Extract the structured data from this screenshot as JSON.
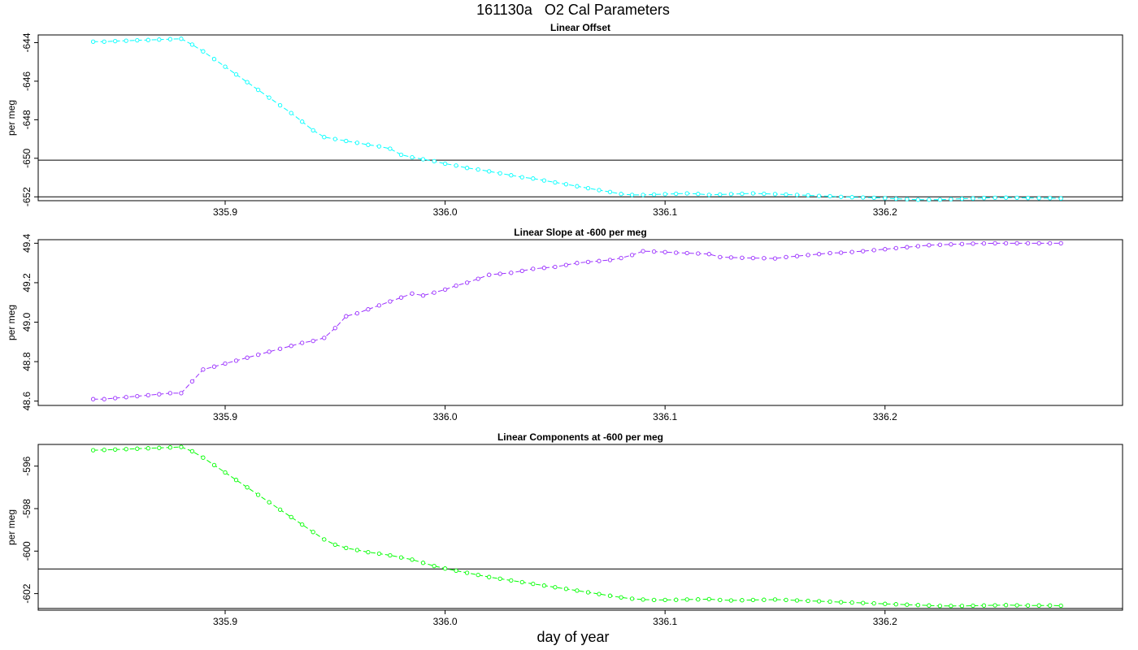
{
  "page": {
    "title": "161130a   O2 Cal Parameters",
    "xlabel": "day of year"
  },
  "chart_data": [
    {
      "type": "line",
      "title": "Linear Offset",
      "xlabel": "day of year",
      "ylabel": "per meg",
      "xlim": [
        335.815,
        336.308
      ],
      "ylim": [
        -652.2,
        -643.6
      ],
      "x_ticks": [
        "335.9",
        "336.0",
        "336.1",
        "336.2"
      ],
      "y_ticks": [
        "-644",
        "-646",
        "-648",
        "-650",
        "-652"
      ],
      "color": "#00ffff",
      "hlines": [
        -650.1,
        -652.0
      ],
      "x": [
        335.84,
        335.845,
        335.85,
        335.855,
        335.86,
        335.865,
        335.87,
        335.875,
        335.88,
        335.885,
        335.89,
        335.895,
        335.9,
        335.905,
        335.91,
        335.915,
        335.92,
        335.925,
        335.93,
        335.935,
        335.94,
        335.945,
        335.95,
        335.955,
        335.96,
        335.965,
        335.97,
        335.975,
        335.98,
        335.985,
        335.99,
        335.995,
        336.0,
        336.005,
        336.01,
        336.015,
        336.02,
        336.025,
        336.03,
        336.035,
        336.04,
        336.045,
        336.05,
        336.055,
        336.06,
        336.065,
        336.07,
        336.075,
        336.08,
        336.085,
        336.09,
        336.095,
        336.1,
        336.105,
        336.11,
        336.115,
        336.12,
        336.125,
        336.13,
        336.135,
        336.14,
        336.145,
        336.15,
        336.155,
        336.16,
        336.165,
        336.17,
        336.175,
        336.18,
        336.185,
        336.19,
        336.195,
        336.2,
        336.205,
        336.21,
        336.215,
        336.22,
        336.225,
        336.23,
        336.235,
        336.24,
        336.245,
        336.25,
        336.255,
        336.26,
        336.265,
        336.27,
        336.275,
        336.28
      ],
      "values": [
        -643.95,
        -643.95,
        -643.92,
        -643.9,
        -643.88,
        -643.86,
        -643.84,
        -643.82,
        -643.8,
        -644.1,
        -644.45,
        -644.85,
        -645.25,
        -645.65,
        -646.05,
        -646.45,
        -646.85,
        -647.25,
        -647.65,
        -648.1,
        -648.55,
        -648.9,
        -649.0,
        -649.1,
        -649.2,
        -649.3,
        -649.38,
        -649.5,
        -649.82,
        -649.95,
        -650.05,
        -650.15,
        -650.28,
        -650.38,
        -650.5,
        -650.58,
        -650.68,
        -650.78,
        -650.88,
        -650.98,
        -651.05,
        -651.15,
        -651.25,
        -651.35,
        -651.45,
        -651.55,
        -651.65,
        -651.75,
        -651.85,
        -651.9,
        -651.9,
        -651.88,
        -651.86,
        -651.84,
        -651.82,
        -651.85,
        -651.9,
        -651.88,
        -651.86,
        -651.84,
        -651.82,
        -651.84,
        -651.86,
        -651.88,
        -651.9,
        -651.92,
        -651.95,
        -651.97,
        -652.0,
        -652.02,
        -652.03,
        -652.05,
        -652.07,
        -652.1,
        -652.12,
        -652.15,
        -652.15,
        -652.15,
        -652.12,
        -652.1,
        -652.08,
        -652.06,
        -652.05,
        -652.04,
        -652.05,
        -652.06,
        -652.07,
        -652.07,
        -652.08
      ]
    },
    {
      "type": "line",
      "title": "Linear Slope at -600 per meg",
      "xlabel": "day of year",
      "ylabel": "per meg",
      "xlim": [
        335.815,
        336.308
      ],
      "ylim": [
        48.578,
        49.418
      ],
      "x_ticks": [
        "335.9",
        "336.0",
        "336.1",
        "336.2"
      ],
      "y_ticks": [
        "48.6",
        "48.8",
        "49.0",
        "49.2",
        "49.4"
      ],
      "color": "#9b30ff",
      "hlines": [],
      "x": [
        335.84,
        335.845,
        335.85,
        335.855,
        335.86,
        335.865,
        335.87,
        335.875,
        335.88,
        335.885,
        335.89,
        335.895,
        335.9,
        335.905,
        335.91,
        335.915,
        335.92,
        335.925,
        335.93,
        335.935,
        335.94,
        335.945,
        335.95,
        335.955,
        335.96,
        335.965,
        335.97,
        335.975,
        335.98,
        335.985,
        335.99,
        335.995,
        336.0,
        336.005,
        336.01,
        336.015,
        336.02,
        336.025,
        336.03,
        336.035,
        336.04,
        336.045,
        336.05,
        336.055,
        336.06,
        336.065,
        336.07,
        336.075,
        336.08,
        336.085,
        336.09,
        336.095,
        336.1,
        336.105,
        336.11,
        336.115,
        336.12,
        336.125,
        336.13,
        336.135,
        336.14,
        336.145,
        336.15,
        336.155,
        336.16,
        336.165,
        336.17,
        336.175,
        336.18,
        336.185,
        336.19,
        336.195,
        336.2,
        336.205,
        336.21,
        336.215,
        336.22,
        336.225,
        336.23,
        336.235,
        336.24,
        336.245,
        336.25,
        336.255,
        336.26,
        336.265,
        336.27,
        336.275,
        336.28
      ],
      "values": [
        48.61,
        48.61,
        48.615,
        48.62,
        48.625,
        48.63,
        48.635,
        48.64,
        48.64,
        48.7,
        48.76,
        48.775,
        48.79,
        48.805,
        48.82,
        48.835,
        48.85,
        48.865,
        48.88,
        48.895,
        48.905,
        48.92,
        48.97,
        49.03,
        49.045,
        49.065,
        49.085,
        49.105,
        49.125,
        49.145,
        49.135,
        49.15,
        49.165,
        49.185,
        49.2,
        49.22,
        49.24,
        49.245,
        49.25,
        49.26,
        49.27,
        49.275,
        49.28,
        49.29,
        49.3,
        49.305,
        49.31,
        49.315,
        49.325,
        49.34,
        49.36,
        49.358,
        49.355,
        49.352,
        49.35,
        49.348,
        49.345,
        49.33,
        49.328,
        49.326,
        49.325,
        49.324,
        49.323,
        49.33,
        49.335,
        49.34,
        49.345,
        49.35,
        49.352,
        49.356,
        49.36,
        49.365,
        49.37,
        49.375,
        49.38,
        49.385,
        49.39,
        49.392,
        49.394,
        49.396,
        49.398,
        49.399,
        49.4,
        49.4,
        49.4,
        49.4,
        49.4,
        49.4,
        49.4
      ]
    },
    {
      "type": "line",
      "title": "Linear Components at -600 per meg",
      "xlabel": "day of year",
      "ylabel": "per meg",
      "xlim": [
        335.815,
        336.308
      ],
      "ylim": [
        -602.78,
        -594.98
      ],
      "x_ticks": [
        "335.9",
        "336.0",
        "336.1",
        "336.2"
      ],
      "y_ticks": [
        "-596",
        "-598",
        "-600",
        "-602"
      ],
      "color": "#00ff00",
      "hlines": [
        -600.84,
        -602.7
      ],
      "x": [
        335.84,
        335.845,
        335.85,
        335.855,
        335.86,
        335.865,
        335.87,
        335.875,
        335.88,
        335.885,
        335.89,
        335.895,
        335.9,
        335.905,
        335.91,
        335.915,
        335.92,
        335.925,
        335.93,
        335.935,
        335.94,
        335.945,
        335.95,
        335.955,
        335.96,
        335.965,
        335.97,
        335.975,
        335.98,
        335.985,
        335.99,
        335.995,
        336.0,
        336.005,
        336.01,
        336.015,
        336.02,
        336.025,
        336.03,
        336.035,
        336.04,
        336.045,
        336.05,
        336.055,
        336.06,
        336.065,
        336.07,
        336.075,
        336.08,
        336.085,
        336.09,
        336.095,
        336.1,
        336.105,
        336.11,
        336.115,
        336.12,
        336.125,
        336.13,
        336.135,
        336.14,
        336.145,
        336.15,
        336.155,
        336.16,
        336.165,
        336.17,
        336.175,
        336.18,
        336.185,
        336.19,
        336.195,
        336.2,
        336.205,
        336.21,
        336.215,
        336.22,
        336.225,
        336.23,
        336.235,
        336.24,
        336.245,
        336.25,
        336.255,
        336.26,
        336.265,
        336.27,
        336.275,
        336.28
      ],
      "values": [
        -595.25,
        -595.24,
        -595.22,
        -595.2,
        -595.18,
        -595.16,
        -595.14,
        -595.12,
        -595.1,
        -595.3,
        -595.6,
        -595.95,
        -596.3,
        -596.65,
        -597.0,
        -597.35,
        -597.7,
        -598.05,
        -598.4,
        -598.75,
        -599.1,
        -599.45,
        -599.7,
        -599.85,
        -599.95,
        -600.05,
        -600.12,
        -600.2,
        -600.3,
        -600.4,
        -600.55,
        -600.7,
        -600.82,
        -600.92,
        -601.02,
        -601.12,
        -601.22,
        -601.3,
        -601.38,
        -601.46,
        -601.54,
        -601.62,
        -601.7,
        -601.78,
        -601.86,
        -601.94,
        -602.02,
        -602.1,
        -602.18,
        -602.24,
        -602.28,
        -602.3,
        -602.3,
        -602.29,
        -602.28,
        -602.27,
        -602.26,
        -602.3,
        -602.32,
        -602.31,
        -602.3,
        -602.29,
        -602.28,
        -602.3,
        -602.32,
        -602.34,
        -602.36,
        -602.38,
        -602.4,
        -602.42,
        -602.44,
        -602.46,
        -602.48,
        -602.5,
        -602.52,
        -602.54,
        -602.56,
        -602.58,
        -602.58,
        -602.58,
        -602.57,
        -602.56,
        -602.55,
        -602.54,
        -602.55,
        -602.56,
        -602.56,
        -602.56,
        -602.57
      ]
    }
  ]
}
